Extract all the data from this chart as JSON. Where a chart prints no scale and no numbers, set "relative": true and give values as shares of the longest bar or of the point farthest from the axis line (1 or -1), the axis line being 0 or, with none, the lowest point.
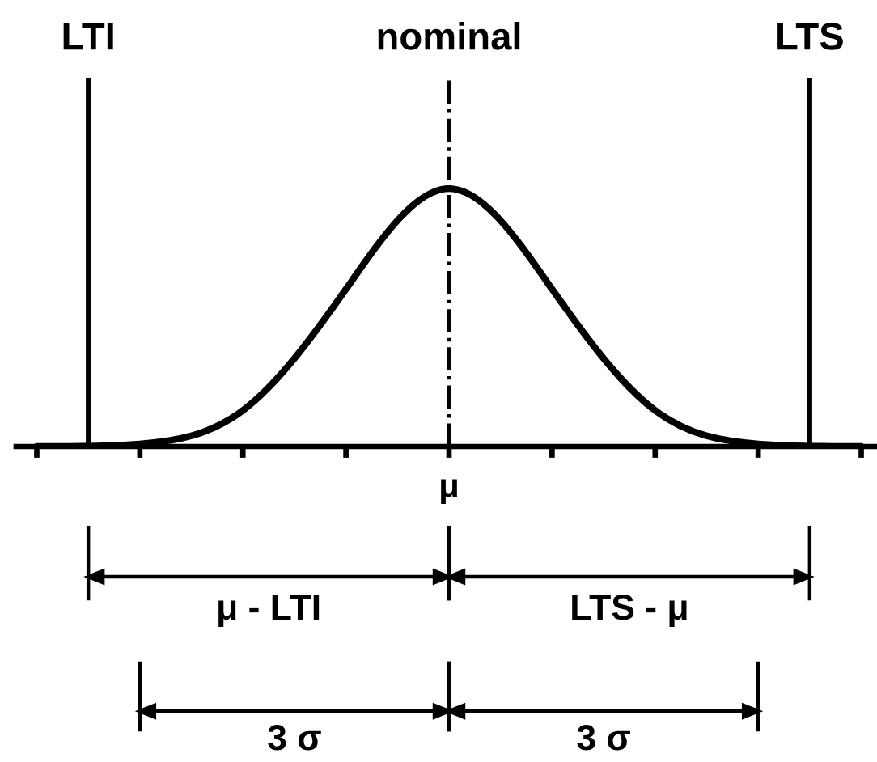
{
  "chart_data": {
    "type": "line",
    "relative": true,
    "categories": [
      null,
      null,
      null,
      null,
      null,
      null,
      null,
      null,
      null
    ],
    "series": [
      {
        "color": "#000000",
        "values": [
          0.0,
          0.01,
          0.14,
          0.61,
          1.0,
          0.61,
          0.14,
          0.01,
          0.0
        ]
      }
    ],
    "annotations": [
      "LTI",
      "nominal",
      "LTS",
      "μ",
      "μ - LTI",
      "LTS - μ",
      "3 σ",
      "3 σ"
    ]
  }
}
